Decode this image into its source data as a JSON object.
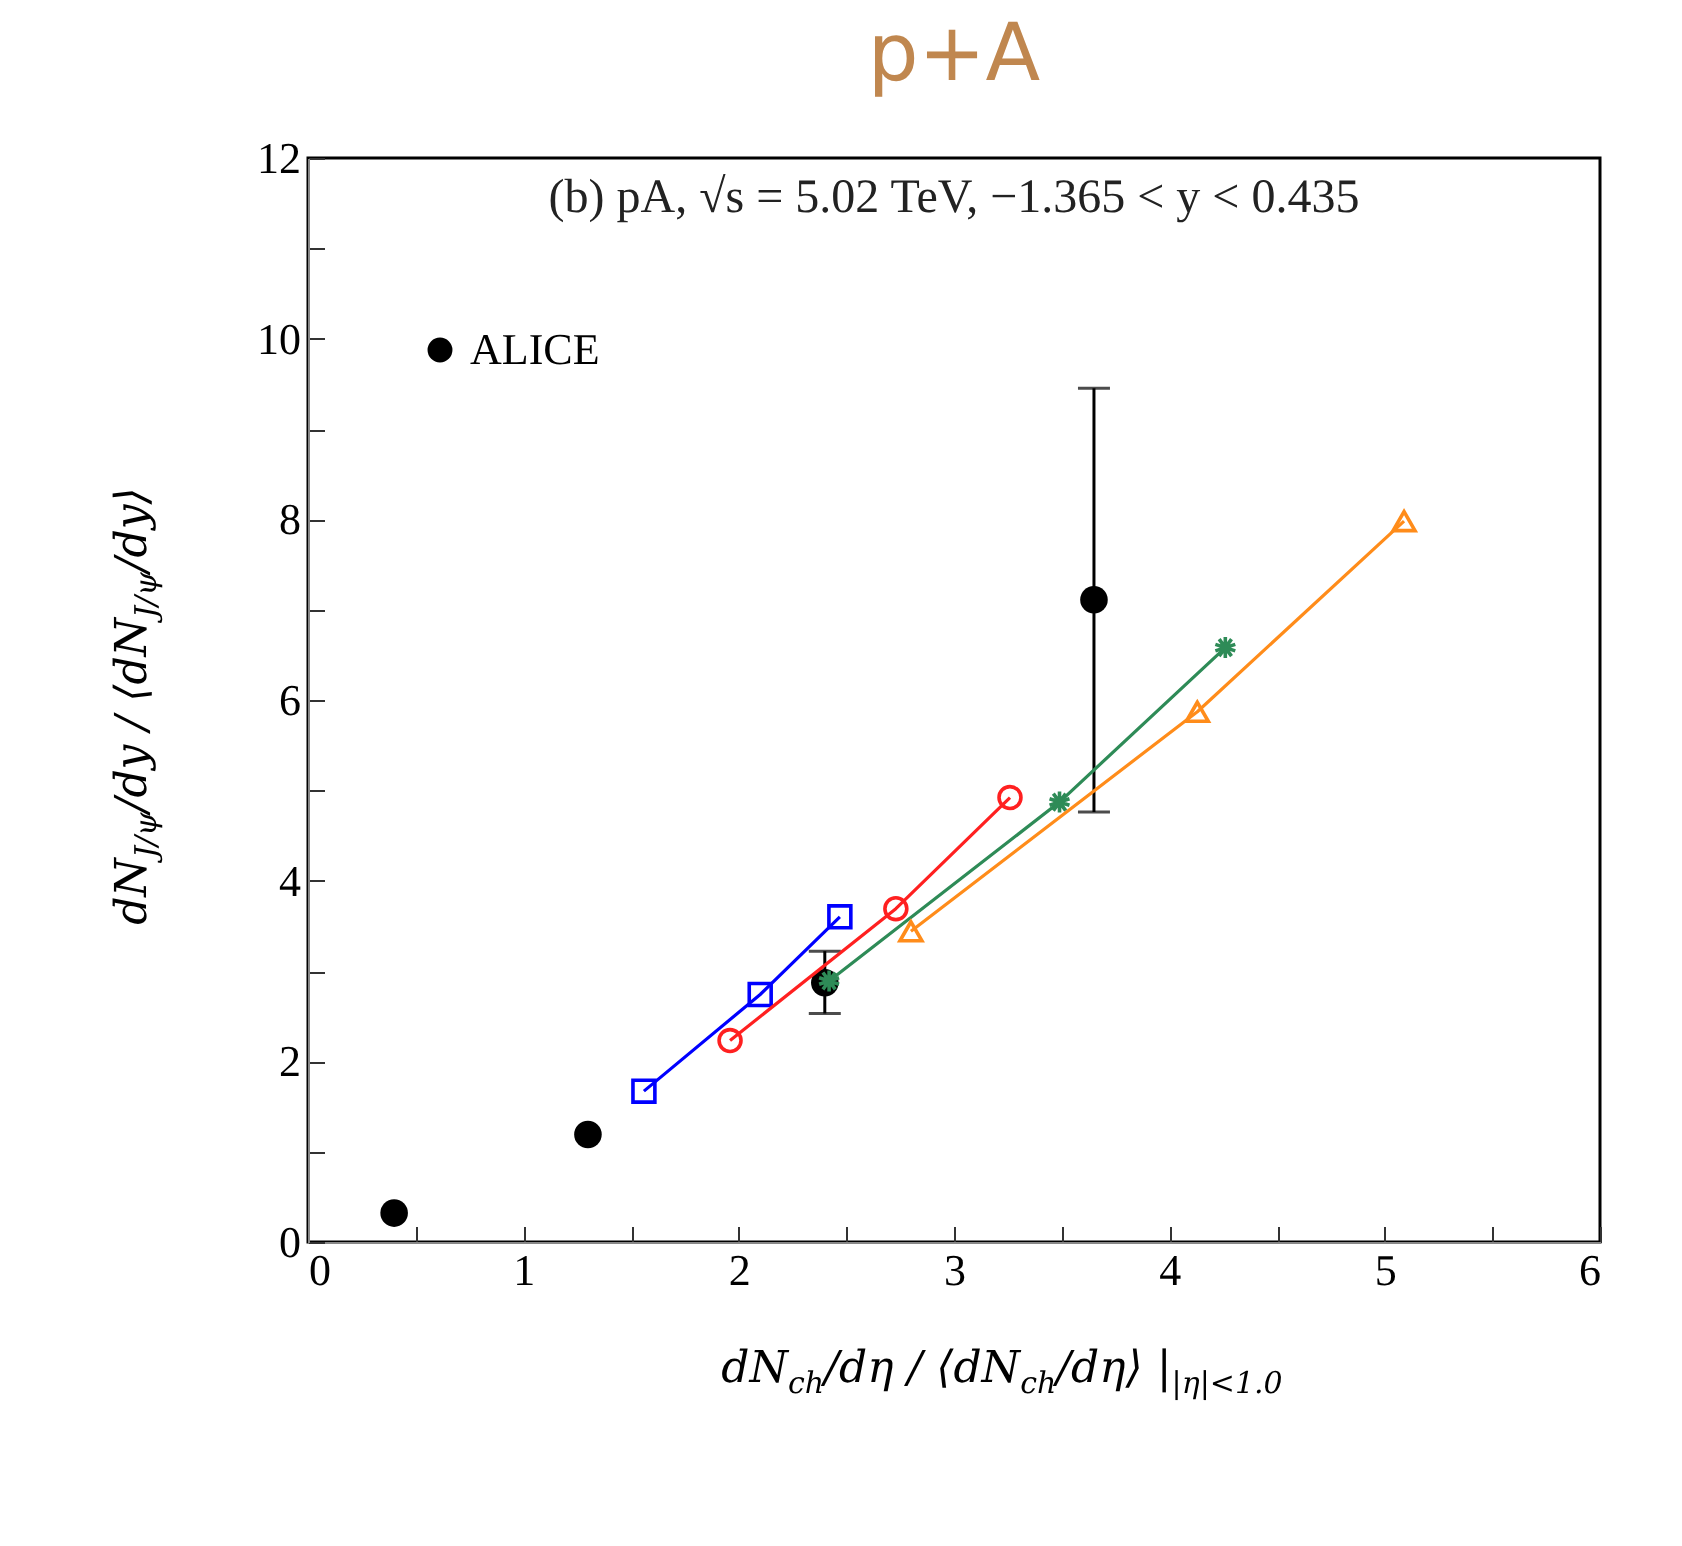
{
  "chart_data": {
    "type": "line",
    "title": "p+A",
    "annotations": [
      "(b) pA, √s = 5.02 TeV, −1.365 < y < 0.435"
    ],
    "xlabel": "dN$_{ch}$/dη  /  ⟨dN$_{ch}$/dη⟩  |$_{|η|<1.0}$",
    "ylabel": "dN$_{J/ψ}$/dy  /  ⟨dN$_{J/ψ}$/dy⟩",
    "xlim": [
      0,
      6
    ],
    "ylim": [
      0,
      12
    ],
    "xticks": [
      0,
      {
        "value": 0.5,
        "label": null
      },
      1,
      {
        "value": 1.5,
        "label": null
      },
      2,
      {
        "value": 2.5,
        "label": null
      },
      3,
      {
        "value": 3.5,
        "label": null
      },
      4,
      {
        "value": 4.5,
        "label": null
      },
      5,
      {
        "value": 5.5,
        "label": null
      },
      6
    ],
    "yticks": [
      0,
      {
        "value": 1,
        "label": null
      },
      2,
      {
        "value": 3,
        "label": null
      },
      4,
      {
        "value": 5,
        "label": null
      },
      6,
      {
        "value": 7,
        "label": null
      },
      8,
      {
        "value": 9,
        "label": null
      },
      10,
      {
        "value": 11,
        "label": null
      },
      12
    ],
    "legend": "top left",
    "grid": false,
    "series": [
      {
        "name": "ALICE",
        "type": "scatter",
        "marker": "circle",
        "color": "#000000",
        "x": [
          0.4,
          1.3,
          2.4,
          3.65
        ],
        "values": [
          0.32,
          1.19,
          2.87,
          7.11
        ],
        "errors": [
          null,
          null,
          [
            2.53,
            3.22
          ],
          [
            4.76,
            9.45
          ]
        ]
      },
      {
        "marker": "square",
        "color": "#0000ff",
        "x": [
          1.56,
          2.1,
          2.47
        ],
        "values": [
          1.67,
          2.74,
          3.6
        ]
      },
      {
        "marker": "circle",
        "color": "#ff2020",
        "x": [
          1.96,
          2.73,
          3.26
        ],
        "values": [
          2.23,
          3.69,
          4.92
        ]
      },
      {
        "marker": "cross",
        "color": "#2e8b57",
        "x": [
          2.42,
          3.49,
          4.26
        ],
        "values": [
          2.89,
          4.87,
          6.58
        ]
      },
      {
        "marker": "triangle",
        "color": "#ff8c1a",
        "x": [
          2.8,
          4.13,
          5.09
        ],
        "values": [
          3.44,
          5.87,
          7.98
        ]
      }
    ]
  }
}
